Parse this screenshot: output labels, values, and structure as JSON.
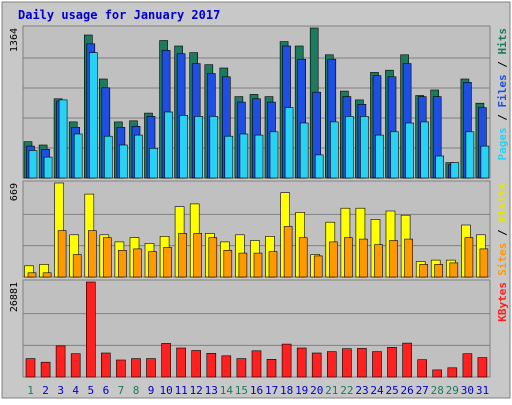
{
  "chart_data": {
    "type": "bar",
    "title": "Daily usage for January 2017",
    "days": [
      "1",
      "2",
      "3",
      "4",
      "5",
      "6",
      "7",
      "8",
      "9",
      "10",
      "11",
      "12",
      "13",
      "14",
      "15",
      "16",
      "17",
      "18",
      "19",
      "20",
      "21",
      "22",
      "23",
      "24",
      "25",
      "26",
      "27",
      "28",
      "29",
      "30",
      "31"
    ],
    "weekend_days": [
      "1",
      "7",
      "8",
      "14",
      "15",
      "21",
      "22",
      "28",
      "29"
    ],
    "panels": [
      {
        "id": "pages-files-hits",
        "max_label": "1364",
        "ymax": 1364,
        "series": [
          {
            "name": "Hits",
            "color": "#1c7b5e",
            "values": [
              330,
              300,
              720,
              510,
              1300,
              900,
              510,
              520,
              590,
              1250,
              1200,
              1140,
              1030,
              1000,
              740,
              760,
              740,
              1240,
              1200,
              1364,
              1120,
              790,
              710,
              960,
              980,
              1120,
              750,
              800,
              140,
              900,
              680
            ]
          },
          {
            "name": "Files",
            "color": "#1f4fe2",
            "values": [
              290,
              260,
              700,
              460,
              1220,
              820,
              460,
              470,
              560,
              1160,
              1130,
              1040,
              950,
              920,
              690,
              720,
              690,
              1200,
              1080,
              780,
              1080,
              740,
              670,
              930,
              920,
              1040,
              740,
              740,
              120,
              870,
              640
            ]
          },
          {
            "name": "Pages",
            "color": "#27d2f2",
            "values": [
              250,
              190,
              710,
              400,
              1140,
              380,
              300,
              390,
              270,
              600,
              570,
              560,
              560,
              380,
              400,
              390,
              420,
              640,
              500,
              210,
              510,
              560,
              560,
              390,
              420,
              500,
              510,
              200,
              140,
              420,
              290
            ]
          }
        ]
      },
      {
        "id": "sites-visits",
        "max_label": "669",
        "ymax": 669,
        "series": [
          {
            "name": "Visits",
            "color": "#ffff00",
            "values": [
              80,
              90,
              669,
              300,
              590,
              300,
              250,
              280,
              240,
              290,
              500,
              520,
              310,
              250,
              300,
              260,
              290,
              600,
              460,
              160,
              390,
              490,
              490,
              410,
              470,
              440,
              110,
              120,
              120,
              370,
              300
            ]
          },
          {
            "name": "Sites",
            "color": "#ff9900",
            "values": [
              30,
              30,
              330,
              160,
              330,
              280,
              190,
              200,
              180,
              210,
              310,
              310,
              280,
              190,
              170,
              170,
              180,
              360,
              280,
              150,
              250,
              280,
              270,
              230,
              260,
              270,
              90,
              90,
              100,
              280,
              200
            ]
          }
        ]
      },
      {
        "id": "kbytes",
        "max_label": "26881",
        "ymax": 26881,
        "series": [
          {
            "name": "KBytes",
            "color": "#ff2020",
            "values": [
              5200,
              4200,
              8800,
              6600,
              26881,
              6800,
              4800,
              5200,
              5200,
              9500,
              8200,
              7500,
              6700,
              6000,
              5200,
              7400,
              5000,
              9300,
              8200,
              6800,
              7200,
              8000,
              8100,
              7200,
              8400,
              9600,
              4900,
              2000,
              2600,
              6600,
              5500
            ]
          }
        ]
      }
    ],
    "right_labels": [
      {
        "panel": 0,
        "parts": [
          {
            "text": "Pages",
            "color": "#27d2f2"
          },
          {
            "text": " / ",
            "color": "#000000"
          },
          {
            "text": "Files",
            "color": "#1f4fe2"
          },
          {
            "text": " / ",
            "color": "#000000"
          },
          {
            "text": "Hits",
            "color": "#1c7b5e"
          }
        ]
      },
      {
        "panel": 1,
        "parts": [
          {
            "text": "Sites",
            "color": "#ff9900"
          },
          {
            "text": " / ",
            "color": "#000000"
          },
          {
            "text": "Visits",
            "color": "#e6e600"
          }
        ]
      },
      {
        "panel": 2,
        "parts": [
          {
            "text": "KBytes",
            "color": "#ff2020"
          }
        ]
      }
    ],
    "grid": true,
    "colors": {
      "panel_bg": "#c0c0c0",
      "title": "#0000cc",
      "weekday_label": "#0000cc",
      "weekend_label": "#1c7b5e",
      "gridline": "#808080"
    }
  }
}
